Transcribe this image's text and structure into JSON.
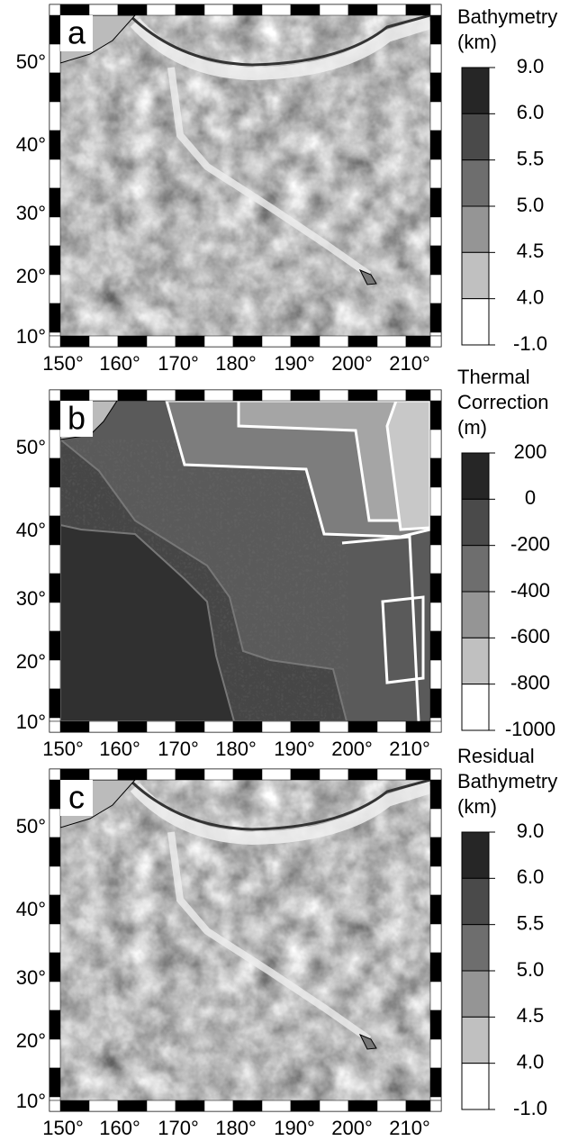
{
  "panels": [
    {
      "label": "a",
      "colorbar_title": [
        "Bathymetry",
        "(km)"
      ],
      "colorbar_labels": [
        "9.0",
        "6.0",
        "5.5",
        "5.0",
        "4.5",
        "4.0",
        "-1.0"
      ]
    },
    {
      "label": "b",
      "colorbar_title": [
        "Thermal",
        "Correction",
        "(m)"
      ],
      "colorbar_labels": [
        "200",
        "0",
        "-200",
        "-400",
        "-600",
        "-800",
        "-1000"
      ]
    },
    {
      "label": "c",
      "colorbar_title": [
        "Residual",
        "Bathymetry",
        "(km)"
      ],
      "colorbar_labels": [
        "9.0",
        "6.0",
        "5.5",
        "5.0",
        "4.5",
        "4.0",
        "-1.0"
      ]
    }
  ],
  "x_labels": [
    "150°",
    "160°",
    "170°",
    "180°",
    "190°",
    "200°",
    "210°"
  ],
  "y_labels": [
    "50°",
    "40°",
    "30°",
    "20°",
    "10°"
  ]
}
